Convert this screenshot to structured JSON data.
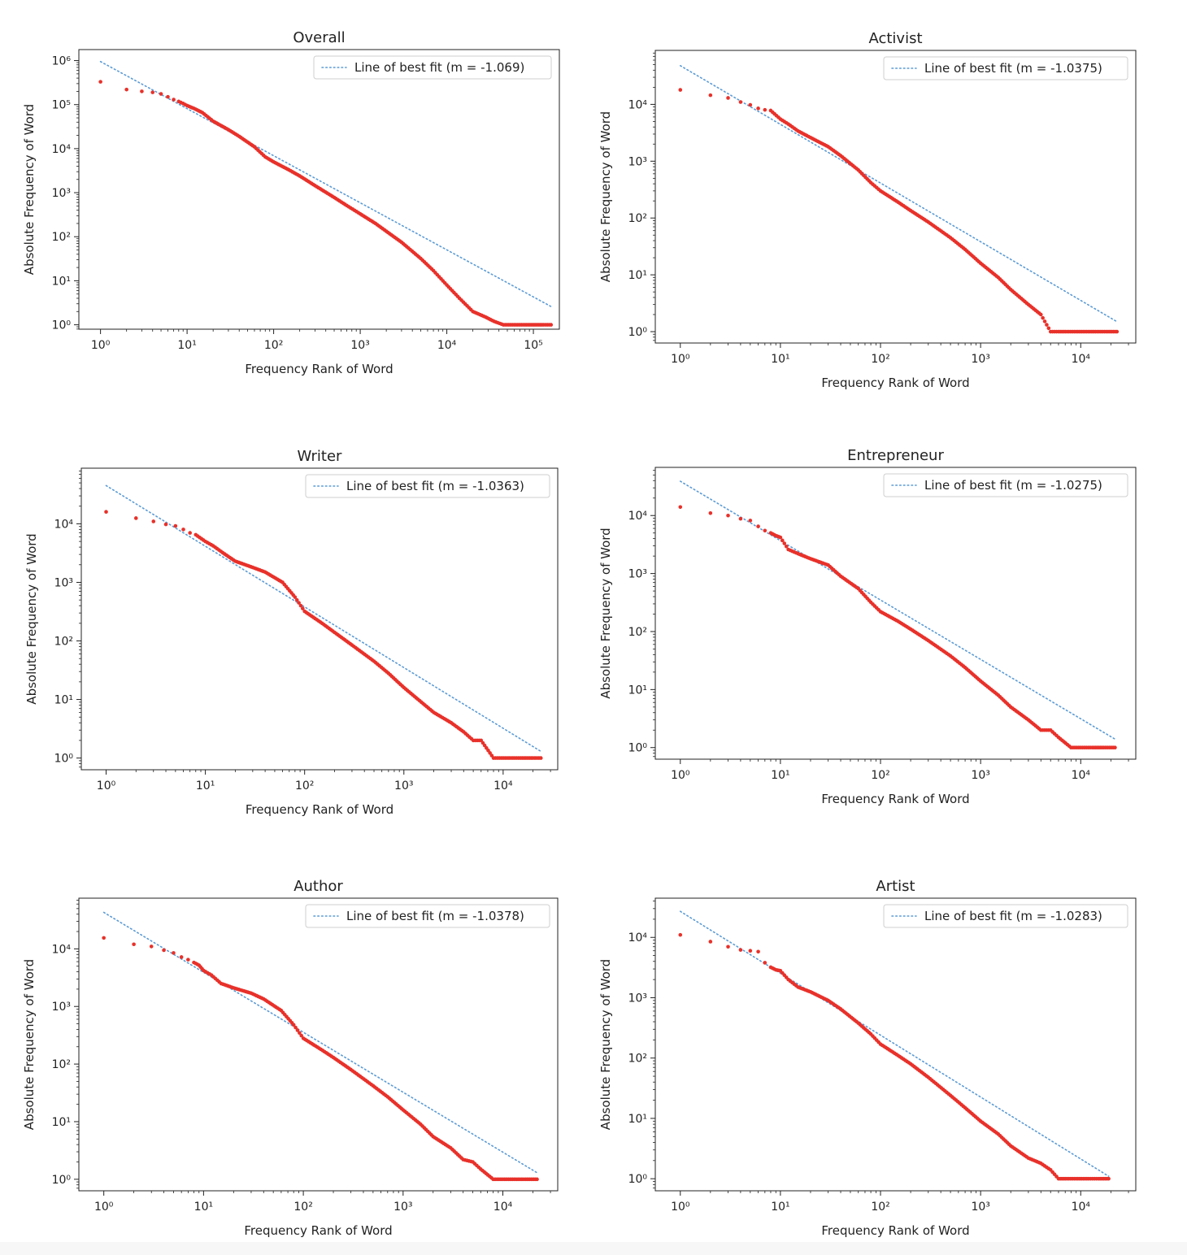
{
  "chart_data": [
    {
      "type": "scatter",
      "title": "Overall",
      "xlabel": "Frequency Rank of Word",
      "ylabel": "Absolute Frequency of Word",
      "xscale": "log",
      "yscale": "log",
      "xticks": [
        "10⁰",
        "10¹",
        "10²",
        "10³",
        "10⁴",
        "10⁵"
      ],
      "yticks": [
        "10⁰",
        "10¹",
        "10²",
        "10³",
        "10⁴",
        "10⁵",
        "10⁶"
      ],
      "legend": {
        "label": "Line of best fit (m = -1.069)",
        "placement": "top-right"
      },
      "fit": {
        "slope": -1.069,
        "x": [
          1,
          160000
        ],
        "y": [
          950000,
          2.6
        ]
      },
      "series": [
        {
          "color": "#e8312a",
          "marker": "dot",
          "x": [
            1,
            2,
            3,
            4,
            5,
            6,
            7,
            8,
            9,
            10,
            12,
            15,
            20,
            30,
            40,
            60,
            80,
            100,
            150,
            200,
            300,
            500,
            700,
            1000,
            1500,
            2000,
            3000,
            5000,
            7000,
            10000,
            14000,
            20000,
            28000,
            35000,
            45000,
            60000,
            80000,
            100000,
            130000,
            160000
          ],
          "y": [
            330000,
            220000,
            200000,
            190000,
            175000,
            150000,
            130000,
            118000,
            106000,
            95000,
            82000,
            66000,
            42000,
            27000,
            19000,
            11000,
            6500,
            5000,
            3300,
            2400,
            1450,
            780,
            510,
            330,
            200,
            133,
            75,
            32,
            17,
            8,
            4,
            2,
            1.5,
            1.2,
            1,
            1,
            1,
            1,
            1,
            1
          ]
        }
      ]
    },
    {
      "type": "scatter",
      "title": "Activist",
      "xlabel": "Frequency Rank of Word",
      "ylabel": "Absolute Frequency of Word",
      "xscale": "log",
      "yscale": "log",
      "xticks": [
        "10⁰",
        "10¹",
        "10²",
        "10³",
        "10⁴"
      ],
      "yticks": [
        "10⁰",
        "10¹",
        "10²",
        "10³",
        "10⁴"
      ],
      "legend": {
        "label": "Line of best fit (m = -1.0375)",
        "placement": "top-right"
      },
      "fit": {
        "slope": -1.0375,
        "x": [
          1,
          23000
        ],
        "y": [
          48000,
          1.5
        ]
      },
      "series": [
        {
          "color": "#e8312a",
          "marker": "dot",
          "x": [
            1,
            2,
            3,
            4,
            5,
            6,
            7,
            8,
            10,
            12,
            15,
            20,
            30,
            40,
            60,
            80,
            100,
            150,
            200,
            300,
            500,
            700,
            1000,
            1500,
            2000,
            3000,
            4000,
            5000,
            6000,
            7000,
            9000,
            11000,
            14000,
            18000,
            23000
          ],
          "y": [
            18000,
            14500,
            13000,
            11000,
            9800,
            8500,
            8000,
            7800,
            5500,
            4500,
            3400,
            2600,
            1800,
            1250,
            700,
            420,
            300,
            190,
            135,
            85,
            45,
            28,
            16,
            9,
            5.5,
            3,
            2,
            1,
            1,
            1,
            1,
            1,
            1,
            1,
            1
          ]
        }
      ]
    },
    {
      "type": "scatter",
      "title": "Writer",
      "xlabel": "Frequency Rank of Word",
      "ylabel": "Absolute Frequency of Word",
      "xscale": "log",
      "yscale": "log",
      "xticks": [
        "10⁰",
        "10¹",
        "10²",
        "10³",
        "10⁴"
      ],
      "yticks": [
        "10⁰",
        "10¹",
        "10²",
        "10³",
        "10⁴"
      ],
      "legend": {
        "label": "Line of best fit (m = -1.0363)",
        "placement": "top-right"
      },
      "fit": {
        "slope": -1.0363,
        "x": [
          1,
          24000
        ],
        "y": [
          45000,
          1.3
        ]
      },
      "series": [
        {
          "color": "#e8312a",
          "marker": "dot",
          "x": [
            1,
            2,
            3,
            4,
            5,
            6,
            7,
            8,
            10,
            12,
            15,
            20,
            30,
            40,
            60,
            80,
            100,
            150,
            200,
            300,
            500,
            700,
            1000,
            1500,
            2000,
            3000,
            4000,
            5000,
            6000,
            8000,
            10000,
            12000,
            15000,
            20000,
            24000
          ],
          "y": [
            16000,
            12500,
            11000,
            9800,
            9200,
            8000,
            7000,
            6500,
            5000,
            4200,
            3200,
            2300,
            1800,
            1500,
            1000,
            560,
            320,
            200,
            140,
            85,
            45,
            28,
            16,
            9,
            6,
            4,
            2.8,
            2,
            2,
            1,
            1,
            1,
            1,
            1,
            1
          ]
        }
      ]
    },
    {
      "type": "scatter",
      "title": "Entrepreneur",
      "xlabel": "Frequency Rank of Word",
      "ylabel": "Absolute Frequency of Word",
      "xscale": "log",
      "yscale": "log",
      "xticks": [
        "10⁰",
        "10¹",
        "10²",
        "10³",
        "10⁴"
      ],
      "yticks": [
        "10⁰",
        "10¹",
        "10²",
        "10³",
        "10⁴"
      ],
      "legend": {
        "label": "Line of best fit (m = -1.0275)",
        "placement": "top-right"
      },
      "fit": {
        "slope": -1.0275,
        "x": [
          1,
          22000
        ],
        "y": [
          39000,
          1.4
        ]
      },
      "series": [
        {
          "color": "#e8312a",
          "marker": "dot",
          "x": [
            1,
            2,
            3,
            4,
            5,
            6,
            7,
            8,
            9,
            10,
            12,
            15,
            20,
            30,
            40,
            60,
            80,
            100,
            150,
            200,
            300,
            500,
            700,
            1000,
            1500,
            2000,
            3000,
            4000,
            5000,
            6000,
            8000,
            10000,
            13000,
            17000,
            22000
          ],
          "y": [
            14000,
            11000,
            10000,
            8800,
            8200,
            6500,
            5500,
            5000,
            4500,
            4200,
            2600,
            2200,
            1800,
            1400,
            900,
            550,
            320,
            220,
            150,
            110,
            70,
            38,
            24,
            14,
            8,
            5,
            3,
            2,
            2,
            1.5,
            1,
            1,
            1,
            1,
            1
          ]
        }
      ]
    },
    {
      "type": "scatter",
      "title": "Author",
      "xlabel": "Frequency Rank of Word",
      "ylabel": "Absolute Frequency of Word",
      "xscale": "log",
      "yscale": "log",
      "xticks": [
        "10⁰",
        "10¹",
        "10²",
        "10³",
        "10⁴"
      ],
      "yticks": [
        "10⁰",
        "10¹",
        "10²",
        "10³",
        "10⁴"
      ],
      "legend": {
        "label": "Line of best fit (m = -1.0378)",
        "placement": "top-right"
      },
      "fit": {
        "slope": -1.0378,
        "x": [
          1,
          22000
        ],
        "y": [
          43000,
          1.3
        ]
      },
      "series": [
        {
          "color": "#e8312a",
          "marker": "dot",
          "x": [
            1,
            2,
            3,
            4,
            5,
            6,
            7,
            8,
            9,
            10,
            12,
            15,
            20,
            30,
            40,
            60,
            80,
            100,
            150,
            200,
            300,
            500,
            700,
            1000,
            1500,
            2000,
            3000,
            4000,
            5000,
            6000,
            8000,
            10000,
            13000,
            17000,
            22000
          ],
          "y": [
            15500,
            12000,
            11000,
            9500,
            8500,
            7200,
            6500,
            5800,
            5200,
            4200,
            3500,
            2500,
            2100,
            1700,
            1350,
            850,
            480,
            280,
            180,
            130,
            80,
            42,
            27,
            16,
            9,
            5.5,
            3.5,
            2.2,
            2,
            1.5,
            1,
            1,
            1,
            1,
            1
          ]
        }
      ]
    },
    {
      "type": "scatter",
      "title": "Artist",
      "xlabel": "Frequency Rank of Word",
      "ylabel": "Absolute Frequency of Word",
      "xscale": "log",
      "yscale": "log",
      "xticks": [
        "10⁰",
        "10¹",
        "10²",
        "10³",
        "10⁴"
      ],
      "yticks": [
        "10⁰",
        "10¹",
        "10²",
        "10³",
        "10⁴"
      ],
      "legend": {
        "label": "Line of best fit (m = -1.0283)",
        "placement": "top-right"
      },
      "fit": {
        "slope": -1.0283,
        "x": [
          1,
          19000
        ],
        "y": [
          27000,
          1.1
        ]
      },
      "series": [
        {
          "color": "#e8312a",
          "marker": "dot",
          "x": [
            1,
            2,
            3,
            4,
            5,
            6,
            7,
            8,
            9,
            10,
            12,
            15,
            20,
            30,
            40,
            60,
            80,
            100,
            150,
            200,
            300,
            500,
            700,
            1000,
            1500,
            2000,
            3000,
            4000,
            5000,
            6000,
            7000,
            9000,
            12000,
            15000,
            19000
          ],
          "y": [
            11000,
            8500,
            7000,
            6200,
            6000,
            5800,
            3800,
            3200,
            2900,
            2800,
            2000,
            1500,
            1250,
            900,
            650,
            380,
            250,
            170,
            110,
            80,
            48,
            24,
            15,
            9,
            5.5,
            3.5,
            2.2,
            1.8,
            1.4,
            1,
            1,
            1,
            1,
            1,
            1
          ]
        }
      ]
    }
  ]
}
